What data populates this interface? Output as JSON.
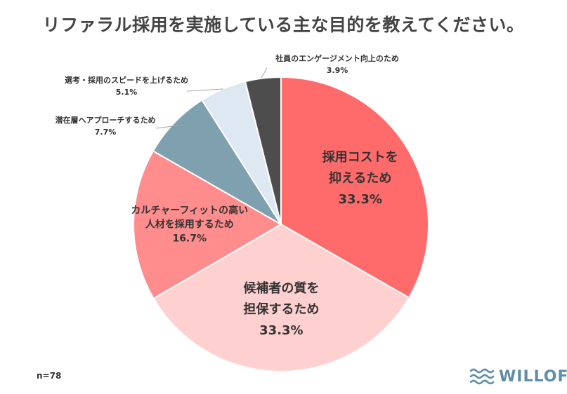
{
  "title": "リファラル採用を実施している主な目的を教えてください。",
  "sample_size": "n=78",
  "logo": {
    "text": "WILLOF",
    "color": "#5f8ea6"
  },
  "chart_data": {
    "type": "pie",
    "title": "リファラル採用を実施している主な目的を教えてください。",
    "unit": "%",
    "start": "12 o'clock",
    "direction": "clockwise",
    "slices": [
      {
        "label_lines": [
          "採用コストを",
          "抑えるため"
        ],
        "value": 33.3,
        "value_label": "33.3%",
        "color": "#ff6b6b",
        "label_position": "inside",
        "label_style": "large"
      },
      {
        "label_lines": [
          "候補者の質を",
          "担保するため"
        ],
        "value": 33.3,
        "value_label": "33.3%",
        "color": "#ffd0d0",
        "label_position": "inside",
        "label_style": "large"
      },
      {
        "label_lines": [
          "カルチャーフィットの高い",
          "人材を採用するため"
        ],
        "value": 16.7,
        "value_label": "16.7%",
        "color": "#ff8d8d",
        "label_position": "inside",
        "label_style": "medium"
      },
      {
        "label_lines": [
          "潜在層へアプローチするため"
        ],
        "value": 7.7,
        "value_label": "7.7%",
        "color": "#7fa0ae",
        "label_position": "outside",
        "label_style": "small"
      },
      {
        "label_lines": [
          "選考・採用のスピードを上げるため"
        ],
        "value": 5.1,
        "value_label": "5.1%",
        "color": "#dde8f3",
        "label_position": "outside",
        "label_style": "small"
      },
      {
        "label_lines": [
          "社員のエンゲージメント向上のため"
        ],
        "value": 3.9,
        "value_label": "3.9%",
        "color": "#4d4d4d",
        "label_position": "outside",
        "label_style": "small"
      }
    ]
  }
}
